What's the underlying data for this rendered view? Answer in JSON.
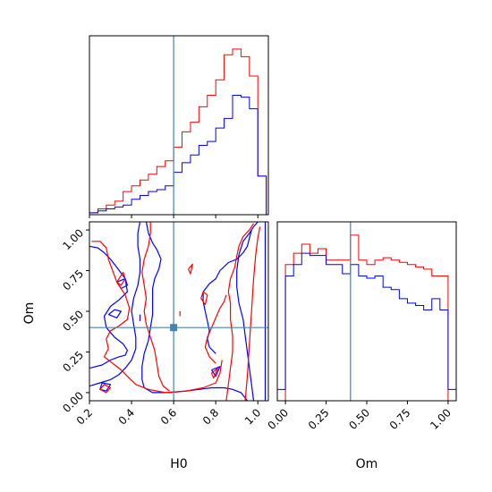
{
  "chart_data": {
    "type": "corner",
    "parameters": [
      "H0",
      "Om"
    ],
    "truth": {
      "H0": 0.6,
      "Om": 0.4
    },
    "colors": {
      "red": "#ff0000",
      "blue": "#0000ff",
      "truth": "#4682b4"
    },
    "hist_H0": {
      "range": [
        0.2,
        1.05
      ],
      "bin_edges": [
        0.2,
        0.24,
        0.28,
        0.32,
        0.36,
        0.4,
        0.44,
        0.48,
        0.52,
        0.56,
        0.6,
        0.64,
        0.68,
        0.72,
        0.76,
        0.8,
        0.84,
        0.88,
        0.92,
        0.96,
        1.0,
        1.04
      ],
      "series": [
        {
          "color": "red",
          "values": [
            1,
            3,
            5,
            7,
            12,
            15,
            18,
            21,
            25,
            28,
            35,
            43,
            48,
            56,
            62,
            70,
            83,
            86,
            82,
            72,
            20
          ]
        },
        {
          "color": "blue",
          "values": [
            1,
            2,
            3,
            4,
            5,
            8,
            10,
            12,
            13,
            15,
            22,
            27,
            31,
            36,
            38,
            45,
            50,
            62,
            61,
            55,
            20
          ]
        }
      ]
    },
    "hist_Om": {
      "range": [
        -0.05,
        1.05
      ],
      "bin_edges": [
        -0.05,
        0.0,
        0.05,
        0.1,
        0.15,
        0.2,
        0.25,
        0.3,
        0.35,
        0.4,
        0.45,
        0.5,
        0.55,
        0.6,
        0.65,
        0.7,
        0.75,
        0.8,
        0.85,
        0.9,
        0.95,
        1.0,
        1.05
      ],
      "series": [
        {
          "color": "red",
          "values": [
            0,
            60,
            65,
            69,
            65,
            67,
            62,
            62,
            62,
            73,
            62,
            60,
            62,
            63,
            62,
            61,
            60,
            59,
            58,
            55,
            55,
            0
          ]
        },
        {
          "color": "blue",
          "values": [
            5,
            55,
            60,
            65,
            64,
            64,
            60,
            60,
            56,
            60,
            55,
            54,
            55,
            50,
            49,
            45,
            43,
            42,
            40,
            45,
            40,
            5
          ]
        }
      ]
    },
    "contour_xlim": [
      0.2,
      1.05
    ],
    "contour_ylim": [
      -0.05,
      1.05
    ],
    "x_ticks": [
      "0.2",
      "0.4",
      "0.6",
      "0.8",
      "1.0"
    ],
    "x_tick_values": [
      0.2,
      0.4,
      0.6,
      0.8,
      1.0
    ],
    "om_ticks": [
      "0.00",
      "0.25",
      "0.50",
      "0.75",
      "1.00"
    ],
    "om_tick_values": [
      0.0,
      0.25,
      0.5,
      0.75,
      1.0
    ],
    "xlabel_left": "H0",
    "ylabel_left": "Om",
    "xlabel_right": "Om"
  }
}
